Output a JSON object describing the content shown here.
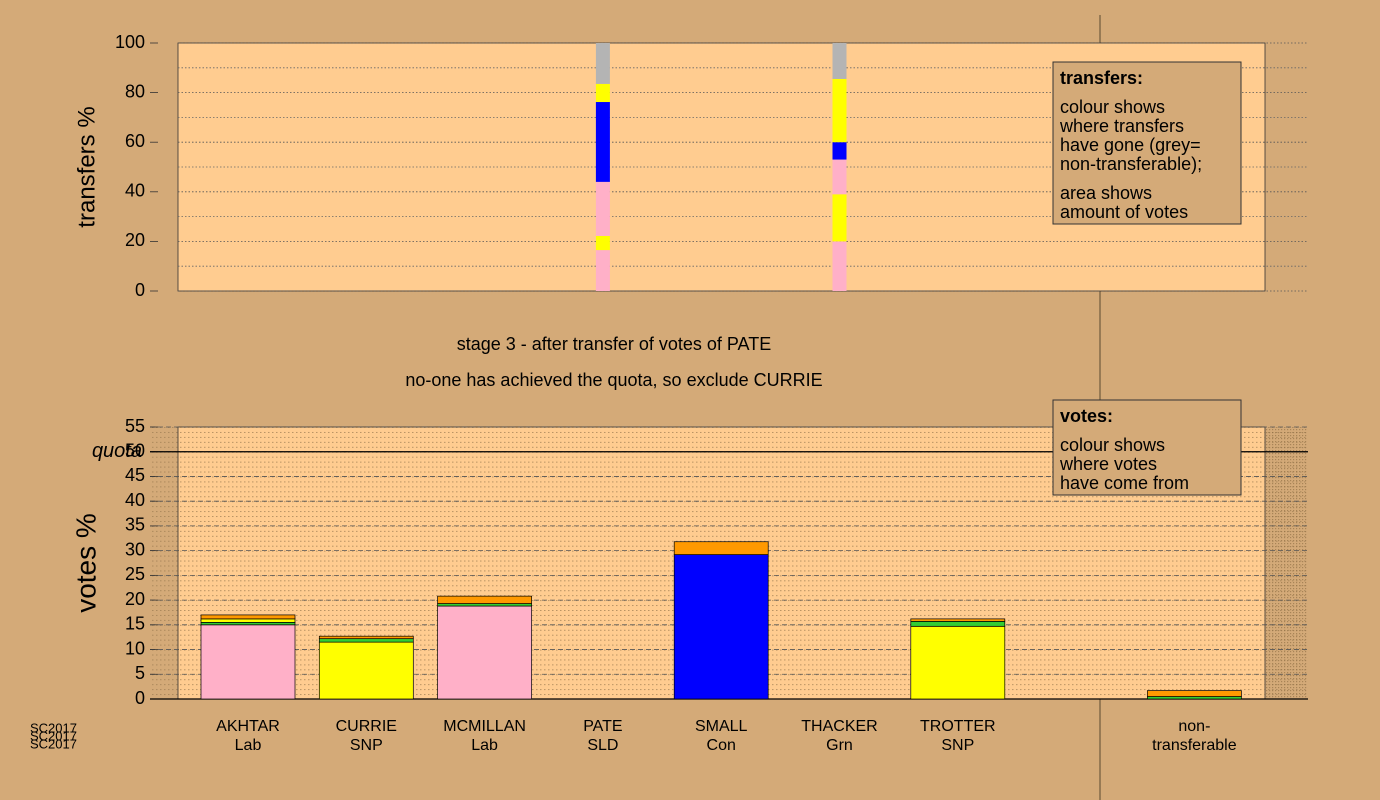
{
  "chart_data": [
    {
      "type": "bar",
      "stacked": true,
      "ylabel": "transfers %",
      "ylim": [
        0,
        100
      ],
      "yticks": [
        0,
        20,
        40,
        60,
        80,
        100
      ],
      "minor_yticks": [
        10,
        30,
        50,
        70,
        90
      ],
      "grid": true,
      "stacks": [
        null,
        null,
        null,
        [
          {
            "color": "#ffb0c8",
            "value": 16.5
          },
          {
            "color": "#ffff00",
            "value": 5.7
          },
          {
            "color": "#ffb0c8",
            "value": 21.8
          },
          {
            "color": "#0000ff",
            "value": 32.2
          },
          {
            "color": "#ffff00",
            "value": 7.3
          },
          {
            "color": "#b4b4b4",
            "value": 16.5
          }
        ],
        null,
        [
          {
            "color": "#ffb0c8",
            "value": 20
          },
          {
            "color": "#ffff00",
            "value": 19
          },
          {
            "color": "#ffb0c8",
            "value": 14
          },
          {
            "color": "#0000ff",
            "value": 7
          },
          {
            "color": "#ffff00",
            "value": 25.5
          },
          {
            "color": "#b4b4b4",
            "value": 14.5
          }
        ],
        null,
        null
      ],
      "note": {
        "title": "transfers:",
        "paragraphs": [
          [
            "colour shows",
            "where transfers",
            "have gone (grey=",
            "non-transferable);"
          ],
          [
            "area shows",
            "amount of votes"
          ]
        ]
      }
    },
    {
      "type": "bar",
      "stacked": true,
      "ylabel": "votes %",
      "ylim": [
        0,
        55
      ],
      "yticks": [
        0,
        5,
        10,
        15,
        20,
        25,
        30,
        35,
        40,
        45,
        50,
        55
      ],
      "grid": true,
      "quota": 50,
      "quota_label": "quota",
      "categories": [
        [
          "AKHTAR",
          "Lab"
        ],
        [
          "CURRIE",
          "SNP"
        ],
        [
          "MCMILLAN",
          "Lab"
        ],
        [
          "PATE",
          "SLD"
        ],
        [
          "SMALL",
          "Con"
        ],
        [
          "THACKER",
          "Grn"
        ],
        [
          "TROTTER",
          "SNP"
        ],
        [
          "non-",
          "transferable"
        ]
      ],
      "stacks": [
        [
          {
            "color": "#ffb0c8",
            "value": 15
          },
          {
            "color": "#33cc33",
            "value": 0.5
          },
          {
            "color": "#ffff00",
            "value": 0.7
          },
          {
            "color": "#ff9900",
            "value": 0.8
          }
        ],
        [
          {
            "color": "#ffff00",
            "value": 11.5
          },
          {
            "color": "#33cc33",
            "value": 0.7
          },
          {
            "color": "#ff9900",
            "value": 0.5
          }
        ],
        [
          {
            "color": "#ffb0c8",
            "value": 18.8
          },
          {
            "color": "#33cc33",
            "value": 0.5
          },
          {
            "color": "#ff9900",
            "value": 1.5
          }
        ],
        [],
        [
          {
            "color": "#0000ff",
            "value": 29.2
          },
          {
            "color": "#ff9900",
            "value": 2.6
          }
        ],
        [],
        [
          {
            "color": "#ffff00",
            "value": 14.7
          },
          {
            "color": "#33cc33",
            "value": 1.0
          },
          {
            "color": "#ff9900",
            "value": 0.5
          }
        ],
        [
          {
            "color": "#33cc33",
            "value": 0.5
          },
          {
            "color": "#ff9900",
            "value": 1.2
          }
        ]
      ],
      "note": {
        "title": "votes:",
        "paragraphs": [
          [
            "colour shows",
            "where votes",
            "have come from"
          ]
        ]
      }
    }
  ],
  "stage": [
    "stage 3 - after transfer of votes of PATE",
    "no-one has achieved the quota, so exclude CURRIE"
  ],
  "watermark": [
    "SC2017",
    "SC2017",
    "SC2017"
  ]
}
